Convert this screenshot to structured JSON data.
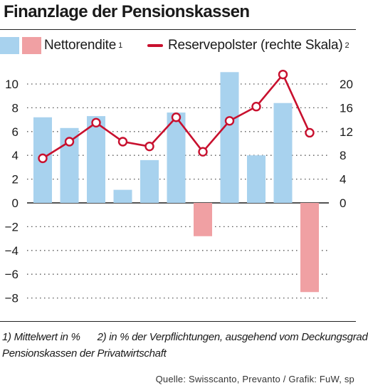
{
  "title": "Finanzlage der Pensionskassen",
  "legend": {
    "net_return": {
      "label": "Nettorendite",
      "marker": "1"
    },
    "reserve": {
      "label": "Reservepolster (rechte Skala)",
      "marker": "2"
    }
  },
  "footnotes": {
    "note1": "1) Mittelwert in %",
    "note2": "2) in % der Verpflichtungen, ausgehend vom Deckungsgrad",
    "note3": "Pensionskassen der Privatwirtschaft"
  },
  "source": "Quelle: Swisscanto, Prevanto / Grafik: FuW, sp",
  "colors": {
    "bar_positive": "#a8d2ee",
    "bar_negative": "#f0a0a3",
    "line": "#c8102e",
    "grid": "#555555"
  },
  "chart_data": {
    "type": "bar",
    "categories": [
      "",
      "",
      "",
      "",
      "",
      "",
      "",
      "",
      "",
      "",
      ""
    ],
    "series": [
      {
        "name": "Nettorendite",
        "axis": "left",
        "type": "bar",
        "values": [
          7.2,
          6.3,
          7.3,
          1.1,
          3.6,
          7.6,
          -2.8,
          11.0,
          4.0,
          8.4,
          -7.5
        ]
      },
      {
        "name": "Reservepolster (rechte Skala)",
        "axis": "right",
        "type": "line",
        "values": [
          7.5,
          10.3,
          13.5,
          10.3,
          9.5,
          14.4,
          8.6,
          13.8,
          16.2,
          21.6,
          11.8
        ]
      }
    ],
    "y_left": {
      "min": -8,
      "max": 10,
      "ticks": [
        10,
        8,
        6,
        4,
        2,
        0,
        -2,
        -4,
        -6,
        -8
      ],
      "tick_labels": [
        "10",
        "8",
        "6",
        "4",
        "2",
        "0",
        "−2",
        "−4",
        "−6",
        "−8"
      ]
    },
    "y_right": {
      "min": -16,
      "max": 20,
      "ticks": [
        20,
        16,
        12,
        8,
        4,
        0
      ],
      "tick_labels": [
        "20",
        "16",
        "12",
        "8",
        "4",
        "0"
      ]
    },
    "grid": true,
    "legend_position": "top"
  }
}
